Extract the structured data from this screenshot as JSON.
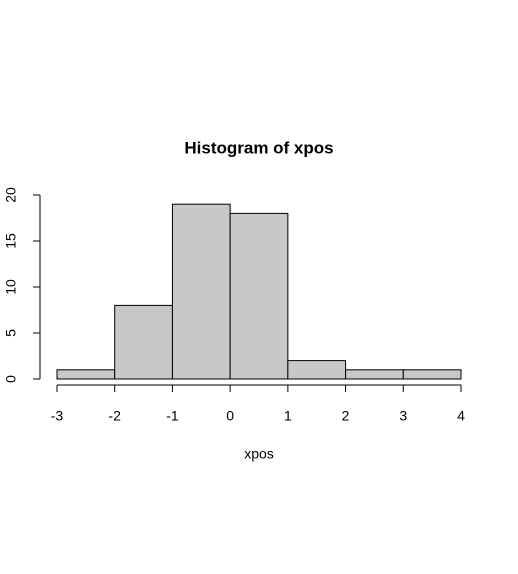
{
  "chart_data": {
    "type": "histogram",
    "title": "Histogram of xpos",
    "x_label": "xpos",
    "bins": [
      -3,
      -2,
      -1,
      0,
      1,
      2,
      3,
      4
    ],
    "values": [
      1,
      8,
      19,
      18,
      2,
      1,
      1
    ],
    "color": "#c8c8c8",
    "xlim": [
      -3,
      4
    ],
    "xticks": [
      -3,
      -2,
      -1,
      0,
      1,
      2,
      3,
      4
    ],
    "ylim": [
      0,
      20
    ],
    "yticks": [
      0,
      5,
      10,
      15,
      20
    ],
    "grid": false
  }
}
